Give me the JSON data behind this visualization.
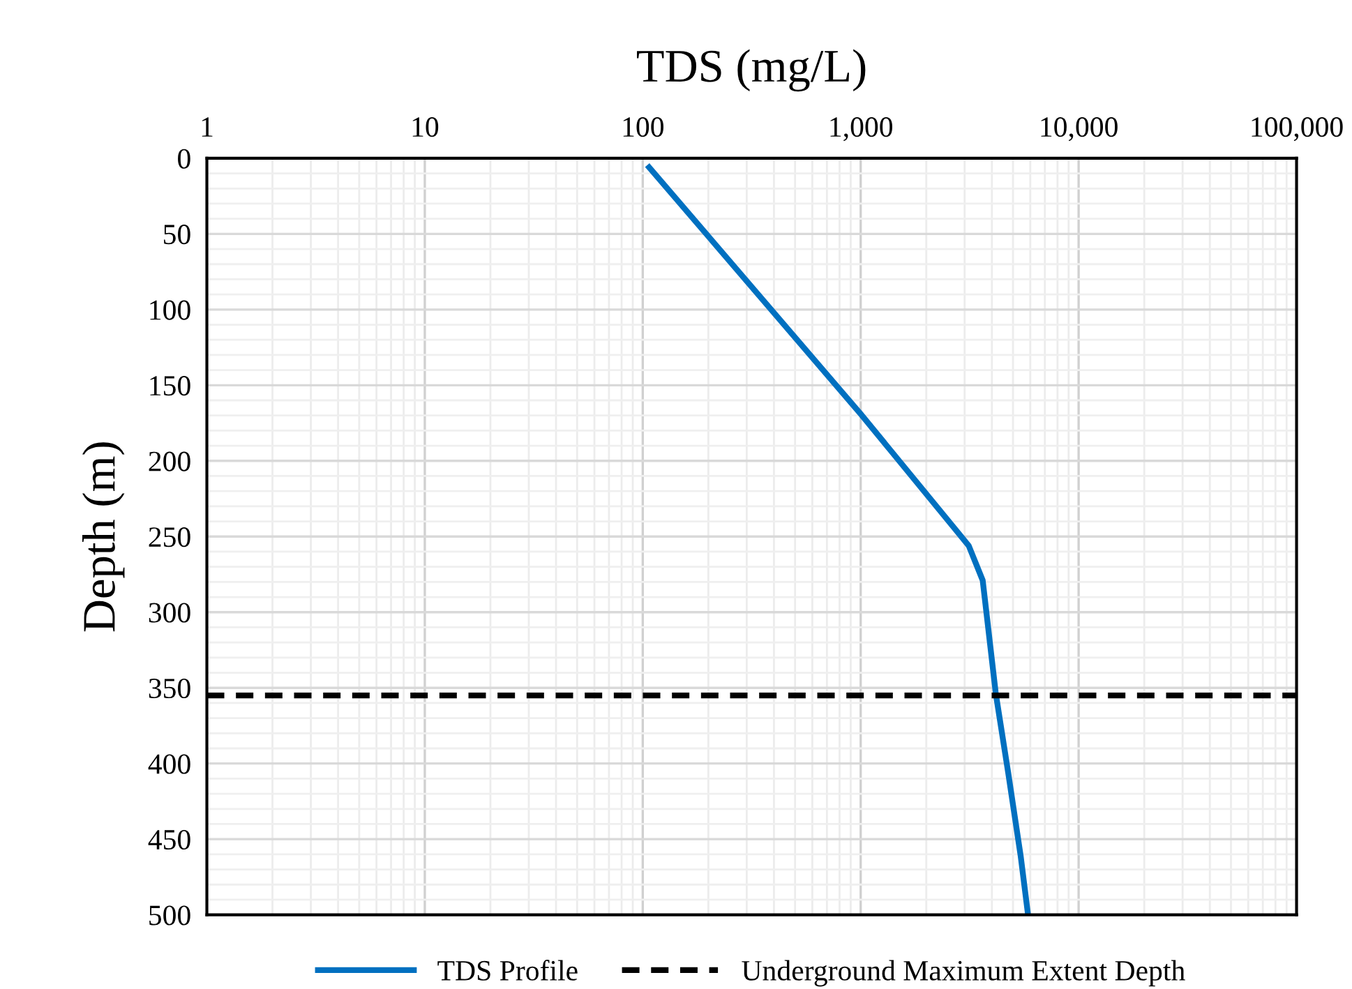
{
  "chart_data": {
    "type": "line",
    "xlabel": "TDS (mg/L)",
    "ylabel": "Depth (m)",
    "log": "x",
    "xlim": [
      1,
      100000
    ],
    "xticks": [
      1,
      10,
      100,
      {
        "value": 1000,
        "label": "1,000"
      },
      {
        "value": 10000,
        "label": "10,000"
      },
      {
        "value": 100000,
        "label": "100,000"
      }
    ],
    "ylim": [
      500,
      0
    ],
    "yticks": [
      0,
      50,
      100,
      150,
      200,
      250,
      300,
      350,
      400,
      450,
      500
    ],
    "series": [
      {
        "name": "TDS Profile",
        "color": "#0070c0",
        "x": [
          107,
          1000,
          3130,
          3630,
          4170,
          4750,
          5420,
          5860
        ],
        "values": [
          6,
          169,
          256,
          279,
          354,
          406,
          461,
          500
        ]
      }
    ],
    "ref_lines": [
      {
        "axis": "y",
        "value": 355,
        "label": "Underground Maximum Extent Depth",
        "color": "#000000",
        "line_style": "dashed"
      }
    ],
    "grid": true,
    "legend": "bottom",
    "line_style": "solid",
    "marker": "none"
  }
}
